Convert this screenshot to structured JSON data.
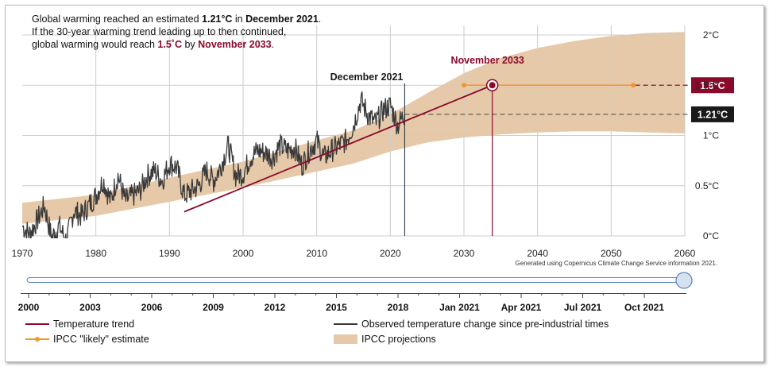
{
  "annotation": {
    "line1_prefix": "Global warming reached an estimated ",
    "line1_value": "1.21°C",
    "line1_mid": " in ",
    "line1_date": "December 2021",
    "line1_suffix": ".",
    "line2": "If the 30-year warming trend leading up to then continued,",
    "line3_prefix": "global warming would reach ",
    "line3_value": "1.5˚C",
    "line3_mid": " by ",
    "line3_date": "November 2033",
    "line3_suffix": "."
  },
  "credit": "Generated using Copernicus Climate Change Service information 2021.",
  "slider": {
    "ticks": [
      "2000",
      "2003",
      "2006",
      "2009",
      "2012",
      "2015",
      "2018",
      "Jan 2021",
      "Apr 2021",
      "Jul 2021",
      "Oct 2021"
    ]
  },
  "legend": {
    "trend": "Temperature trend",
    "observed": "Observed temperature change since pre-industrial times",
    "likely": "IPCC \"likely\" estimate",
    "projections": "IPCC projections"
  },
  "colors": {
    "trend": "#8b0a2c",
    "observed": "#3a3a3a",
    "likely": "#f0962e",
    "band": "#e6c9a8",
    "grid": "#cccccc",
    "label_dark": "#1a1a1a"
  },
  "chart_data": {
    "type": "line",
    "xlim": [
      1970,
      2060
    ],
    "ylim": [
      0,
      2
    ],
    "x_ticks": [
      1970,
      1980,
      1990,
      2000,
      2010,
      2020,
      2030,
      2040,
      2050,
      2060
    ],
    "y_ticks": [
      {
        "value": 0,
        "label": "0°C"
      },
      {
        "value": 0.5,
        "label": "0.5°C"
      },
      {
        "value": 1,
        "label": "1°C"
      },
      {
        "value": 1.5,
        "label": "1.5°C"
      },
      {
        "value": 2,
        "label": "2°C"
      }
    ],
    "markers": {
      "current": {
        "x": 2021.95,
        "y": 1.21,
        "label": "December 2021",
        "value_label": "1.21°C"
      },
      "target": {
        "x": 2033.85,
        "y": 1.5,
        "label": "November 2033",
        "value_label": "1.5°C"
      }
    },
    "trend": {
      "x": [
        1992,
        2033.85
      ],
      "y": [
        0.24,
        1.5
      ]
    },
    "likely_estimate": {
      "x": [
        2030,
        2053
      ],
      "y": [
        1.5,
        1.5
      ]
    },
    "ipcc_band": {
      "x": [
        1970,
        1980,
        1990,
        2000,
        2010,
        2015,
        2020,
        2025,
        2030,
        2035,
        2040,
        2045,
        2050,
        2055,
        2060
      ],
      "lower": [
        0.12,
        0.2,
        0.34,
        0.48,
        0.64,
        0.72,
        0.84,
        0.93,
        0.98,
        1.01,
        1.03,
        1.04,
        1.04,
        1.03,
        1.02
      ],
      "upper": [
        0.33,
        0.41,
        0.58,
        0.74,
        0.95,
        1.05,
        1.21,
        1.42,
        1.62,
        1.77,
        1.87,
        1.94,
        1.99,
        2.02,
        2.03
      ]
    },
    "observed": {
      "x": [
        1970,
        1971,
        1972,
        1973,
        1974,
        1975,
        1976,
        1977,
        1978,
        1979,
        1980,
        1981,
        1982,
        1983,
        1984,
        1985,
        1986,
        1987,
        1988,
        1989,
        1990,
        1991,
        1992,
        1993,
        1994,
        1995,
        1996,
        1997,
        1998,
        1999,
        2000,
        2001,
        2002,
        2003,
        2004,
        2005,
        2006,
        2007,
        2008,
        2009,
        2010,
        2011,
        2012,
        2013,
        2014,
        2015,
        2016,
        2017,
        2018,
        2019,
        2020,
        2021,
        2021.95
      ],
      "y": [
        0.1,
        0.02,
        0.15,
        0.3,
        -0.02,
        0.1,
        -0.05,
        0.25,
        0.2,
        0.3,
        0.4,
        0.55,
        0.35,
        0.6,
        0.35,
        0.4,
        0.45,
        0.6,
        0.65,
        0.55,
        0.72,
        0.68,
        0.4,
        0.45,
        0.5,
        0.65,
        0.55,
        0.7,
        0.9,
        0.6,
        0.62,
        0.78,
        0.85,
        0.83,
        0.78,
        0.9,
        0.85,
        0.88,
        0.7,
        0.85,
        0.95,
        0.78,
        0.85,
        0.9,
        0.95,
        1.1,
        1.35,
        1.2,
        1.12,
        1.25,
        1.3,
        1.1,
        1.21
      ]
    }
  }
}
